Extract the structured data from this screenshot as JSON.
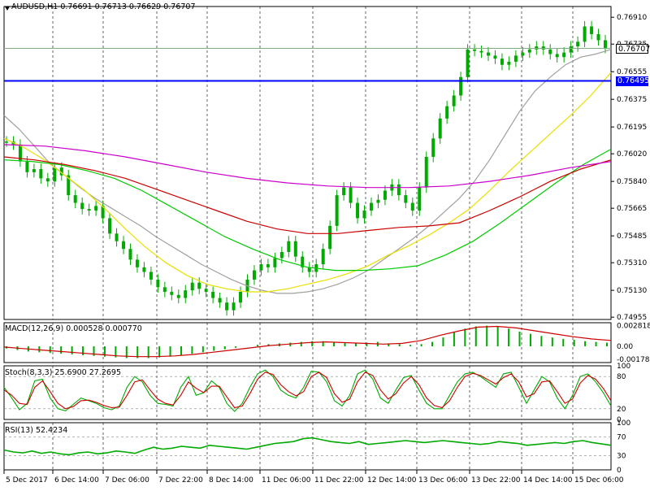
{
  "header": {
    "symbol_label": "AUDUSD,H1",
    "ohlc": "0.76691 0.76713 0.76629 0.76707"
  },
  "chart_data": [
    {
      "type": "line",
      "title": "AUDUSD,H1",
      "subtitle": "0.76691 0.76713 0.76629 0.76707",
      "x_ticks": [
        "5 Dec 2017",
        "6 Dec 14:00",
        "7 Dec 06:00",
        "7 Dec 22:00",
        "8 Dec 14:00",
        "11 Dec 06:00",
        "11 Dec 22:00",
        "12 Dec 14:00",
        "13 Dec 06:00",
        "13 Dec 22:00",
        "14 Dec 14:00",
        "15 Dec 06:00"
      ],
      "y_ticks": [
        "0.76910",
        "0.76735",
        "0.76555",
        "0.76375",
        "0.76195",
        "0.76020",
        "0.75840",
        "0.75665",
        "0.75485",
        "0.75310",
        "0.75130",
        "0.74955"
      ],
      "ylim": [
        0.7494,
        0.7698
      ],
      "current_price": "0.76707",
      "current_price_value": 0.76707,
      "hline_label": "0.76495",
      "hline_value": 0.76495,
      "colors": {
        "candles": "#00aa00",
        "price_line": "#7fae7f",
        "hline": "#0000ff",
        "sma_gray": "#a0a0a0",
        "sma_yellow": "#ffff00",
        "sma_green": "#00cc00",
        "sma_red": "#cc0000",
        "sma_magenta": "#cc00cc"
      },
      "series": [
        {
          "color": "#00aa00",
          "style": "candles",
          "values": [
            0.761,
            0.7608,
            0.7597,
            0.759,
            0.7592,
            0.7586,
            0.7584,
            0.7593,
            0.7588,
            0.7575,
            0.757,
            0.7566,
            0.7565,
            0.7568,
            0.756,
            0.755,
            0.7545,
            0.754,
            0.7533,
            0.7528,
            0.7525,
            0.752,
            0.7515,
            0.7512,
            0.751,
            0.7508,
            0.7513,
            0.7518,
            0.7514,
            0.7512,
            0.7508,
            0.7505,
            0.75,
            0.7505,
            0.7512,
            0.752,
            0.7526,
            0.753,
            0.7528,
            0.7534,
            0.7538,
            0.7545,
            0.7535,
            0.7528,
            0.7525,
            0.753,
            0.754,
            0.7555,
            0.7575,
            0.758,
            0.757,
            0.756,
            0.7565,
            0.757,
            0.7572,
            0.7578,
            0.7582,
            0.7575,
            0.757,
            0.7565,
            0.758,
            0.76,
            0.7612,
            0.7625,
            0.7633,
            0.764,
            0.7652,
            0.767,
            0.7669,
            0.7668,
            0.7666,
            0.7664,
            0.766,
            0.7662,
            0.7666,
            0.7668,
            0.767,
            0.7672,
            0.767,
            0.7667,
            0.7665,
            0.7668,
            0.7672,
            0.7675,
            0.7685,
            0.768,
            0.7676,
            0.7671
          ]
        },
        {
          "color": "#a0a0a0",
          "style": "line",
          "values": [
            0.7627,
            0.7618,
            0.7607,
            0.7596,
            0.7588,
            0.758,
            0.7573,
            0.7567,
            0.7561,
            0.7555,
            0.7548,
            0.7542,
            0.7536,
            0.753,
            0.7525,
            0.752,
            0.7516,
            0.7513,
            0.7511,
            0.7511,
            0.7512,
            0.7514,
            0.7517,
            0.7521,
            0.7526,
            0.7533,
            0.754,
            0.7547,
            0.7555,
            0.7564,
            0.7573,
            0.7584,
            0.7598,
            0.7614,
            0.763,
            0.7643,
            0.7652,
            0.766,
            0.7665,
            0.7667,
            0.767
          ]
        },
        {
          "color": "#e8e000",
          "style": "line",
          "values": [
            0.7612,
            0.7606,
            0.7598,
            0.7588,
            0.7578,
            0.7566,
            0.7553,
            0.7541,
            0.7531,
            0.7523,
            0.7517,
            0.7514,
            0.7512,
            0.7512,
            0.7514,
            0.7517,
            0.752,
            0.7524,
            0.7529,
            0.7536,
            0.7542,
            0.7549,
            0.7557,
            0.7566,
            0.7578,
            0.7591,
            0.7603,
            0.7615,
            0.7627,
            0.764,
            0.7655
          ]
        },
        {
          "color": "#00cc00",
          "style": "line",
          "values": [
            0.7598,
            0.7597,
            0.7595,
            0.7591,
            0.7586,
            0.7578,
            0.7568,
            0.7558,
            0.7548,
            0.754,
            0.7533,
            0.7528,
            0.7526,
            0.7526,
            0.7527,
            0.7529,
            0.7536,
            0.7545,
            0.7557,
            0.757,
            0.7583,
            0.7595,
            0.7605
          ]
        },
        {
          "color": "#cc0000",
          "style": "line",
          "values": [
            0.76,
            0.7598,
            0.7595,
            0.7591,
            0.7586,
            0.7579,
            0.7572,
            0.7565,
            0.7558,
            0.7553,
            0.755,
            0.755,
            0.7552,
            0.7554,
            0.7555,
            0.7557,
            0.7565,
            0.7574,
            0.7584,
            0.7592,
            0.7598
          ]
        },
        {
          "color": "#cc00cc",
          "style": "line",
          "values": [
            0.7608,
            0.7607,
            0.7604,
            0.76,
            0.7595,
            0.759,
            0.7586,
            0.7583,
            0.7581,
            0.758,
            0.758,
            0.7581,
            0.7584,
            0.7588,
            0.7593,
            0.7597
          ]
        }
      ]
    },
    {
      "type": "bar",
      "title": "MACD(12,26,9) 0.000528 0.000770",
      "y_ticks": [
        "0.002818",
        "0.00",
        "-0.00178"
      ],
      "ylim": [
        -0.0022,
        0.0032
      ],
      "series": [
        {
          "style": "histogram",
          "color": "#00aa00",
          "values": [
            -0.0003,
            -0.0005,
            -0.0007,
            -0.0008,
            -0.0009,
            -0.001,
            -0.0011,
            -0.0012,
            -0.0013,
            -0.0014,
            -0.0015,
            -0.0016,
            -0.0016,
            -0.0016,
            -0.0015,
            -0.0014,
            -0.0012,
            -0.001,
            -0.0008,
            -0.0006,
            -0.0004,
            -0.0002,
            0.0,
            0.0002,
            0.0003,
            0.0004,
            0.0005,
            0.0006,
            0.0007,
            0.0007,
            0.0006,
            0.0005,
            0.0004,
            0.0005,
            0.0006,
            0.0004,
            0.0003,
            0.0002,
            0.0003,
            0.0006,
            0.0012,
            0.0019,
            0.0024,
            0.0027,
            0.0028,
            0.0027,
            0.0024,
            0.002,
            0.0017,
            0.0014,
            0.0012,
            0.001,
            0.0009,
            0.0007,
            0.0006,
            0.0005
          ]
        },
        {
          "style": "line",
          "color": "#cc0000",
          "values": [
            -0.0001,
            -0.0003,
            -0.0005,
            -0.0007,
            -0.0009,
            -0.0011,
            -0.0013,
            -0.0014,
            -0.0014,
            -0.0013,
            -0.0011,
            -0.0008,
            -0.0005,
            -0.0002,
            0.0001,
            0.0003,
            0.0005,
            0.0006,
            0.0005,
            0.0004,
            0.0003,
            0.0004,
            0.0008,
            0.0015,
            0.0021,
            0.0026,
            0.0027,
            0.0025,
            0.0021,
            0.0017,
            0.0013,
            0.001,
            0.0008
          ]
        }
      ]
    },
    {
      "type": "line",
      "title": "Stoch(8,3,3) 25.6900 27.2695",
      "y_ticks": [
        "100",
        "80",
        "20",
        "0"
      ],
      "ylim": [
        0,
        100
      ],
      "series": [
        {
          "color": "#00aa00",
          "values": [
            60,
            40,
            18,
            30,
            72,
            75,
            40,
            20,
            16,
            28,
            40,
            35,
            30,
            22,
            18,
            25,
            60,
            80,
            70,
            45,
            30,
            28,
            25,
            60,
            80,
            45,
            50,
            72,
            60,
            30,
            15,
            30,
            60,
            85,
            92,
            80,
            55,
            45,
            40,
            60,
            90,
            88,
            70,
            35,
            25,
            45,
            85,
            92,
            75,
            40,
            30,
            55,
            78,
            82,
            55,
            30,
            20,
            20,
            45,
            70,
            85,
            88,
            80,
            70,
            60,
            85,
            88,
            60,
            30,
            55,
            80,
            70,
            40,
            20,
            45,
            80,
            85,
            70,
            50,
            25
          ]
        },
        {
          "color": "#cc0000",
          "values": [
            55,
            45,
            30,
            28,
            60,
            72,
            52,
            30,
            20,
            24,
            35,
            36,
            32,
            26,
            22,
            23,
            45,
            70,
            74,
            55,
            38,
            30,
            27,
            45,
            70,
            58,
            50,
            62,
            62,
            42,
            22,
            25,
            48,
            75,
            88,
            84,
            65,
            52,
            44,
            52,
            80,
            88,
            78,
            48,
            32,
            38,
            70,
            88,
            82,
            55,
            38,
            48,
            68,
            80,
            65,
            40,
            26,
            22,
            35,
            60,
            80,
            86,
            82,
            74,
            66,
            78,
            85,
            70,
            42,
            48,
            70,
            72,
            52,
            30,
            38,
            68,
            82,
            75,
            58,
            35
          ]
        }
      ]
    },
    {
      "type": "line",
      "title": "RSI(13) 52.4234",
      "y_ticks": [
        "100",
        "70",
        "30",
        "0"
      ],
      "ylim": [
        0,
        100
      ],
      "series": [
        {
          "color": "#00aa00",
          "values": [
            42,
            38,
            36,
            40,
            35,
            38,
            34,
            32,
            36,
            38,
            34,
            36,
            40,
            38,
            35,
            42,
            48,
            44,
            46,
            50,
            48,
            46,
            52,
            50,
            48,
            46,
            44,
            48,
            52,
            56,
            58,
            60,
            66,
            68,
            64,
            60,
            58,
            56,
            60,
            54,
            56,
            58,
            60,
            62,
            60,
            58,
            60,
            62,
            60,
            58,
            56,
            54,
            56,
            60,
            58,
            56,
            52,
            54,
            56,
            58,
            56,
            60,
            62,
            58,
            55,
            52
          ]
        }
      ]
    }
  ],
  "panels": {
    "macd_label": "MACD(12,26,9) 0.000528 0.000770",
    "stoch_label": "Stoch(8,3,3) 25.6900 27.2695",
    "rsi_label": "RSI(13) 52.4234"
  }
}
